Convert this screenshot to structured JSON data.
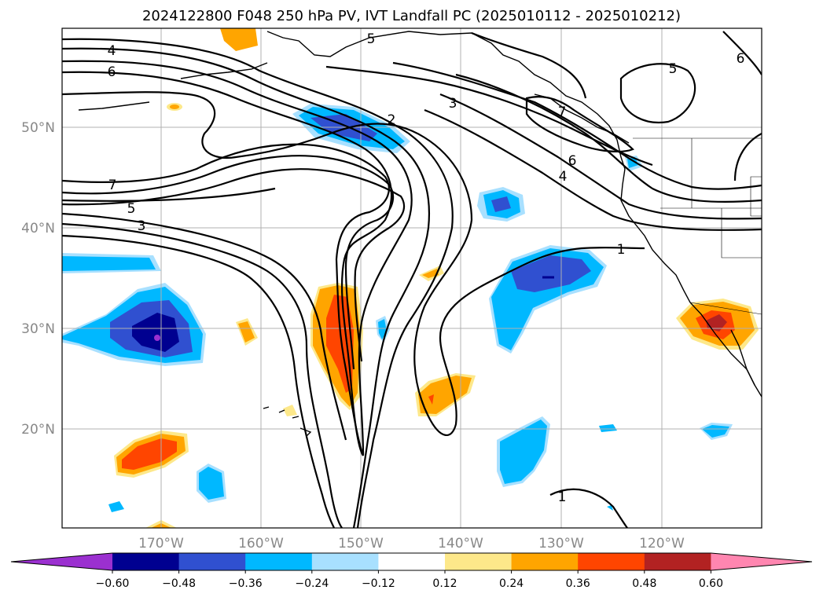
{
  "title": "2024122800 F048 250 hPa PV, IVT Landfall PC (2025010112 - 2025010212)",
  "lat_labels": [
    "50°N",
    "40°N",
    "30°N",
    "20°N"
  ],
  "lon_labels": [
    "170°W",
    "160°W",
    "150°W",
    "140°W",
    "130°W",
    "120°W"
  ],
  "contour_labels": [
    "4",
    "6",
    "5",
    "2",
    "3",
    "7",
    "6",
    "4",
    "5",
    "6",
    "7",
    "5",
    "3",
    "1",
    "1"
  ],
  "colorbar": {
    "ticks": [
      "−0.60",
      "−0.48",
      "−0.36",
      "−0.24",
      "−0.12",
      "0.12",
      "0.24",
      "0.36",
      "0.48",
      "0.60"
    ],
    "colors": [
      "#9b30d0",
      "#000090",
      "#3050d0",
      "#00b8ff",
      "#a8e0ff",
      "#ffffff",
      "#fde88a",
      "#ffa500",
      "#ff4500",
      "#b22222",
      "#ff86b0"
    ]
  }
}
